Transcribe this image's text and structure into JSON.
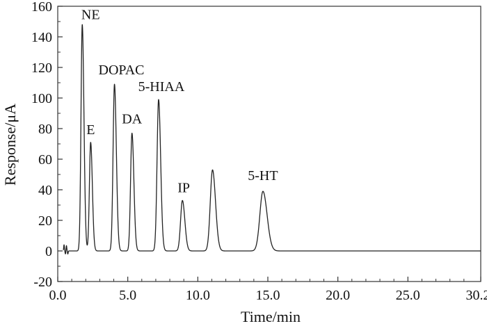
{
  "chart_data": {
    "type": "line",
    "title": "",
    "xlabel": "Time/min",
    "ylabel": "Response/μA",
    "xlim": [
      0,
      30.2
    ],
    "ylim": [
      -20,
      160
    ],
    "xticks": [
      0,
      5,
      10,
      15,
      20,
      25,
      30.2
    ],
    "xtick_labels": [
      "0.0",
      "5.0",
      "10.0",
      "15.0",
      "20.0",
      "25.0",
      "30.2"
    ],
    "yticks": [
      -20,
      0,
      20,
      40,
      60,
      80,
      100,
      120,
      140,
      160
    ],
    "ytick_labels": [
      "-20",
      "0",
      "20",
      "40",
      "60",
      "80",
      "100",
      "120",
      "140",
      "160"
    ],
    "grid": false,
    "line_color": "#222222",
    "baseline": 0,
    "series": [
      {
        "peaks": [
          {
            "label": "NE",
            "time": 1.75,
            "height": 148,
            "width": 0.09
          },
          {
            "label": "E",
            "time": 2.35,
            "height": 71,
            "width": 0.09
          },
          {
            "label": "DOPAC",
            "time": 4.05,
            "height": 109,
            "width": 0.1
          },
          {
            "label": "DA",
            "time": 5.3,
            "height": 77,
            "width": 0.1
          },
          {
            "label": "5-HIAA",
            "time": 7.2,
            "height": 99,
            "width": 0.11
          },
          {
            "label": "IP",
            "time": 8.9,
            "height": 33,
            "width": 0.13
          },
          {
            "label": "",
            "time": 11.05,
            "height": 53,
            "width": 0.16
          },
          {
            "label": "5-HT",
            "time": 14.65,
            "height": 39,
            "width": 0.22
          }
        ],
        "disturbances": [
          {
            "time": 0.45,
            "height": 4
          },
          {
            "time": 0.55,
            "height": -2
          },
          {
            "time": 0.62,
            "height": 3.5
          },
          {
            "time": 0.72,
            "height": -2
          }
        ]
      }
    ]
  }
}
